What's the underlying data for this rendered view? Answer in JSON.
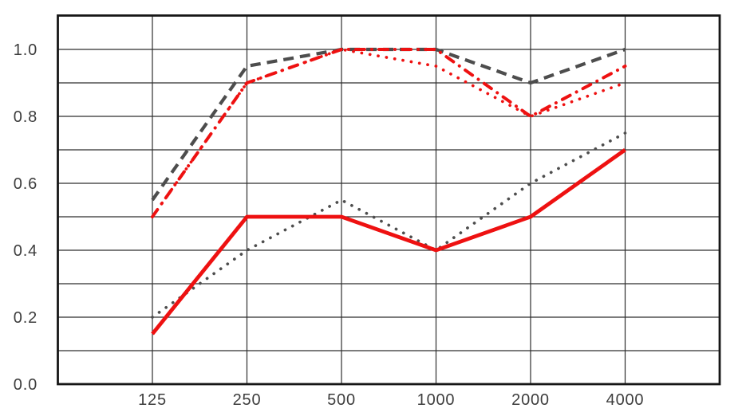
{
  "chart_data": {
    "type": "line",
    "title": "",
    "xlabel": "",
    "ylabel": "",
    "x_categories": [
      "125",
      "250",
      "500",
      "1000",
      "2000",
      "4000"
    ],
    "y_tick_labels": [
      "1.0",
      "0.8",
      "0.6",
      "0.4",
      "0.2",
      "0.0"
    ],
    "y_tick_values": [
      1.0,
      0.8,
      0.6,
      0.4,
      0.2,
      0.0
    ],
    "ylim": [
      0.0,
      1.1
    ],
    "y_grid_step": 0.1,
    "grid": "both",
    "legend": "none",
    "colors": {
      "red": "#ee1111",
      "dark_gray": "#4d4d4d",
      "grid": "#2e2e2e",
      "border": "#161616",
      "label_text": "#3d3d3d",
      "background": "#ffffff"
    },
    "series": [
      {
        "name": "dark-dashed",
        "style": "dashed",
        "color": "#4d4d4d",
        "values": [
          0.55,
          0.95,
          1.0,
          1.0,
          0.9,
          1.0
        ]
      },
      {
        "name": "dark-dotted",
        "style": "dotted",
        "color": "#4d4d4d",
        "values": [
          0.2,
          0.4,
          0.55,
          0.4,
          0.6,
          0.75
        ]
      },
      {
        "name": "red-dotted",
        "style": "dotted",
        "color": "#ee1111",
        "values": [
          0.5,
          0.9,
          1.0,
          0.95,
          0.8,
          0.9
        ]
      },
      {
        "name": "red-dash-dot",
        "style": "dash-dot",
        "color": "#ee1111",
        "values": [
          0.5,
          0.9,
          1.0,
          1.0,
          0.8,
          0.95
        ]
      },
      {
        "name": "red-solid",
        "style": "solid",
        "color": "#ee1111",
        "values": [
          0.15,
          0.5,
          0.5,
          0.4,
          0.5,
          0.7
        ]
      }
    ]
  }
}
